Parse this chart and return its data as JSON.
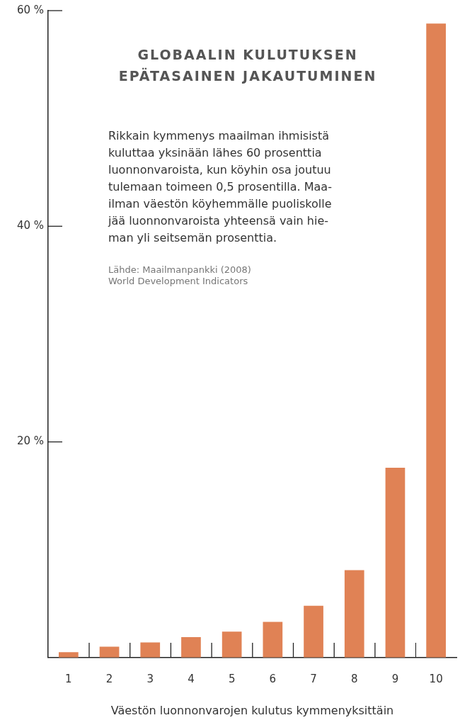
{
  "chart_data": {
    "type": "bar",
    "title": "GLOBAALIN KULUTUKSEN EPÄTASAINEN JAKAUTUMINEN",
    "xlabel": "Väestön luonnonvarojen kulutus kymmenyksittäin",
    "categories": [
      "1",
      "2",
      "3",
      "4",
      "5",
      "6",
      "7",
      "8",
      "9",
      "10"
    ],
    "values": [
      0.5,
      1.0,
      1.4,
      1.9,
      2.4,
      3.3,
      4.8,
      8.1,
      17.6,
      58.8
    ],
    "color": "#e08255",
    "ylim": [
      0,
      60
    ],
    "yticks": [
      {
        "value": 20,
        "label": "20 %"
      },
      {
        "value": 40,
        "label": "40 %"
      },
      {
        "value": 60,
        "label": "60 %"
      }
    ],
    "grid": false,
    "legend": false,
    "annotations": [
      "Rikkain kymmenys maailman ihmisistä\nkuluttaa yksinään lähes 60 prosenttia\nluonnonvaroista, kun köyhin osa joutuu\ntulemaan toimeen 0,5 prosentilla. Maa-\nilman väestön köyhemmälle puoliskolle\njää luonnonvaroista yhteensä vain hie-\nman yli seitsemän prosenttia.",
      "Lähde: Maailmanpankki (2008)\nWorld Development Indicators"
    ]
  }
}
